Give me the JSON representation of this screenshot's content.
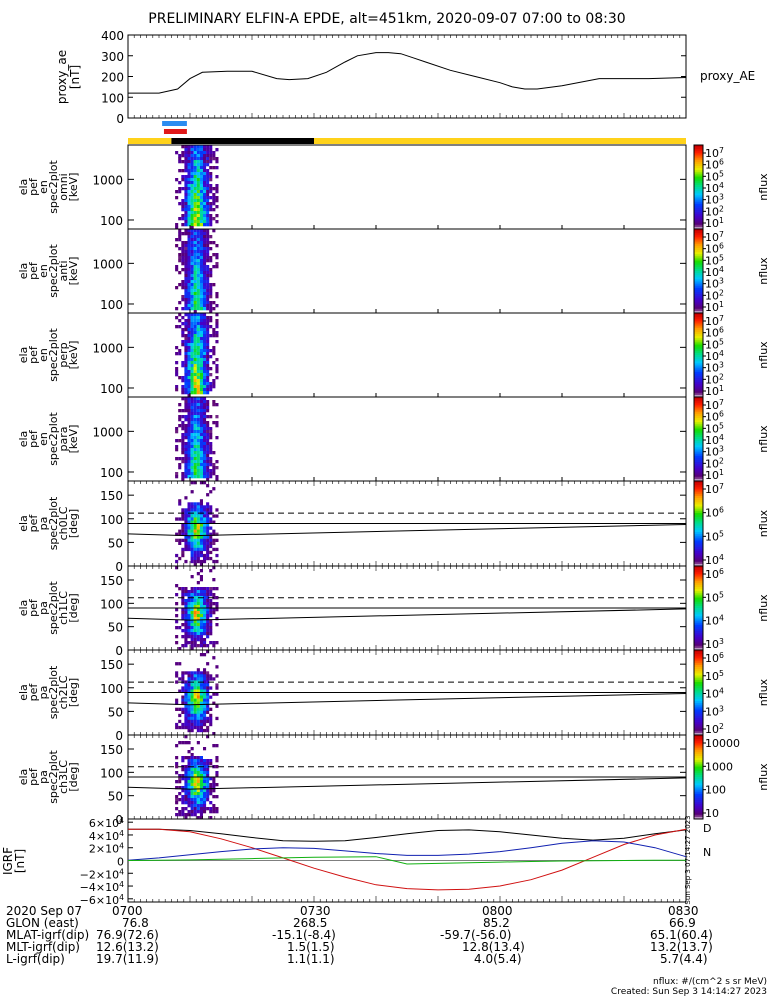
{
  "title": "PRELIMINARY ELFIN-A EPDE, alt=451km, 2020-09-07 07:00 to 08:30",
  "chart_data": [
    {
      "type": "line",
      "panel": "proxy_ae",
      "ylabel": "proxy_ae [nT]",
      "legend": "proxy_AE",
      "ylim": [
        0,
        400
      ],
      "yticks": [
        "400",
        "300",
        "200",
        "100",
        "0"
      ],
      "x": [
        0,
        5,
        8,
        10,
        12,
        16,
        20,
        24,
        26,
        29,
        32,
        35,
        37,
        40,
        42,
        44,
        46,
        48,
        52,
        56,
        60,
        62,
        64,
        66,
        70,
        76,
        84,
        90
      ],
      "y": [
        120,
        120,
        140,
        190,
        220,
        225,
        225,
        190,
        185,
        190,
        220,
        270,
        300,
        315,
        315,
        310,
        290,
        270,
        230,
        200,
        170,
        150,
        140,
        140,
        155,
        190,
        190,
        195
      ]
    },
    {
      "type": "heatmap",
      "panel": "omni",
      "ylabel": "ela pef en spec2plot omni [keV]",
      "yscale": "log",
      "ylim": [
        60,
        7000
      ],
      "yticks": [
        "1000",
        "100"
      ],
      "cbar": {
        "label": "nflux",
        "ticks": [
          "10^7",
          "10^6",
          "10^5",
          "10^4",
          "10^3",
          "10^2",
          "10^1"
        ],
        "range": [
          1,
          7
        ]
      }
    },
    {
      "type": "heatmap",
      "panel": "anti",
      "ylabel": "ela pef en spec2plot anti [keV]",
      "yscale": "log",
      "ylim": [
        60,
        7000
      ],
      "yticks": [
        "1000",
        "100"
      ],
      "cbar": {
        "label": "nflux",
        "ticks": [
          "10^7",
          "10^6",
          "10^5",
          "10^4",
          "10^3",
          "10^2",
          "10^1"
        ],
        "range": [
          1,
          7
        ]
      }
    },
    {
      "type": "heatmap",
      "panel": "perp",
      "ylabel": "ela pef en spec2plot perp [keV]",
      "yscale": "log",
      "ylim": [
        60,
        7000
      ],
      "yticks": [
        "1000",
        "100"
      ],
      "cbar": {
        "label": "nflux",
        "ticks": [
          "10^7",
          "10^6",
          "10^5",
          "10^4",
          "10^3",
          "10^2",
          "10^1"
        ],
        "range": [
          1,
          7
        ]
      }
    },
    {
      "type": "heatmap",
      "panel": "para",
      "ylabel": "ela pef en spec2plot para [keV]",
      "yscale": "log",
      "ylim": [
        60,
        7000
      ],
      "yticks": [
        "1000",
        "100"
      ],
      "cbar": {
        "label": "nflux",
        "ticks": [
          "10^7",
          "10^6",
          "10^5",
          "10^4",
          "10^3",
          "10^2",
          "10^1"
        ],
        "range": [
          1,
          7
        ]
      }
    },
    {
      "type": "heatmap",
      "panel": "ch0LC",
      "ylabel": "ela pef pa spec2plot ch0LC [deg]",
      "ylim": [
        0,
        180
      ],
      "yticks": [
        "150",
        "100",
        "50",
        "0"
      ],
      "cbar": {
        "label": "nflux",
        "ticks": [
          "10^7",
          "10^6",
          "10^5",
          "10^4"
        ],
        "range": [
          3.5,
          7
        ]
      }
    },
    {
      "type": "heatmap",
      "panel": "ch1LC",
      "ylabel": "ela pef pa spec2plot ch1LC [deg]",
      "ylim": [
        0,
        180
      ],
      "yticks": [
        "150",
        "100",
        "50",
        "0"
      ],
      "cbar": {
        "label": "nflux",
        "ticks": [
          "10^6",
          "10^5",
          "10^4",
          "10^3"
        ],
        "range": [
          3,
          6.7
        ]
      }
    },
    {
      "type": "heatmap",
      "panel": "ch2LC",
      "ylabel": "ela pef pa spec2plot ch2LC [deg]",
      "ylim": [
        0,
        180
      ],
      "yticks": [
        "150",
        "100",
        "50",
        "0"
      ],
      "cbar": {
        "label": "nflux",
        "ticks": [
          "10^6",
          "10^5",
          "10^4",
          "10^3",
          "10^2"
        ],
        "range": [
          1.8,
          6.3
        ]
      }
    },
    {
      "type": "heatmap",
      "panel": "ch3LC",
      "ylabel": "ela pef pa spec2plot ch3LC [deg]",
      "ylim": [
        0,
        180
      ],
      "yticks": [
        "150",
        "100",
        "50",
        "0"
      ],
      "cbar": {
        "label": "nflux",
        "ticks": [
          "10000",
          "1000",
          "100",
          "10"
        ],
        "range": [
          1,
          4.3
        ]
      }
    },
    {
      "type": "line",
      "panel": "IGRF",
      "ylabel": "IGRF [nT]",
      "ylim": [
        -65000,
        65000
      ],
      "yticks": [
        "6×10^4",
        "4×10^4",
        "2×10^4",
        "0",
        "−2×10^4",
        "−4×10^4",
        "−6×10^4"
      ],
      "legend_labels": [
        "D",
        "N"
      ],
      "x": [
        0,
        5,
        10,
        15,
        20,
        25,
        30,
        35,
        40,
        45,
        50,
        55,
        60,
        65,
        70,
        75,
        80,
        85,
        90
      ],
      "series": [
        {
          "color": "#000000",
          "values": [
            49000,
            49000,
            47000,
            42000,
            36000,
            31000,
            30000,
            31000,
            36000,
            42000,
            47000,
            48000,
            45000,
            40000,
            35000,
            32000,
            35000,
            42000,
            48000
          ]
        },
        {
          "color": "#d01010",
          "values": [
            49000,
            49000,
            45000,
            34000,
            20000,
            4000,
            -12000,
            -26000,
            -38000,
            -44000,
            -46000,
            -45000,
            -40000,
            -30000,
            -15000,
            5000,
            25000,
            40000,
            49000
          ]
        },
        {
          "color": "#1020b0",
          "values": [
            500,
            4000,
            9000,
            14000,
            18000,
            20000,
            19000,
            15000,
            11000,
            8000,
            8000,
            10000,
            14000,
            20000,
            27000,
            31000,
            29000,
            20000,
            6000
          ]
        },
        {
          "color": "#10b010",
          "values": [
            0,
            500,
            1000,
            2000,
            3000,
            4000,
            5000,
            5500,
            6000,
            -5500,
            -4500,
            -3500,
            -2500,
            -1500,
            -800,
            -300,
            0,
            300,
            500
          ]
        }
      ]
    }
  ],
  "annotation_bars": [
    {
      "color": "#2b8cf0",
      "x_start": 5.5,
      "x_end": 9.5
    },
    {
      "color": "#e01818",
      "x_start": 5.8,
      "x_end": 9.5
    },
    {
      "segments": [
        {
          "color": "#ffd21a",
          "x0": 0,
          "x1": 7
        },
        {
          "color": "#000000",
          "x0": 7,
          "x1": 30
        },
        {
          "color": "#ffd21a",
          "x0": 30,
          "x1": 90
        }
      ]
    }
  ],
  "ch3lc_side_label": "Sun Sep  3 07:14:27 2023",
  "bottom_table": {
    "rows": [
      [
        "2020 Sep 07",
        "0700",
        "0730",
        "0800",
        "0830"
      ],
      [
        "GLON (east)",
        "76.8",
        "268.5",
        "85.2",
        "66.9"
      ],
      [
        "MLAT-igrf(dip)",
        "76.9(72.6)",
        "-15.1(-8.4)",
        "-59.7(-56.0)",
        "65.1(60.4)"
      ],
      [
        "MLT-igrf(dip)",
        "12.6(13.2)",
        "1.5(1.5)",
        "12.8(13.4)",
        "13.2(13.7)"
      ],
      [
        "L-igrf(dip)",
        "19.7(11.9)",
        "1.1(1.1)",
        "4.0(5.4)",
        "5.7(4.4)"
      ]
    ]
  },
  "footer": {
    "units": "nflux: #/(cm^2 s sr MeV)",
    "created": "Created: Sun Sep  3 14:14:27 2023"
  }
}
